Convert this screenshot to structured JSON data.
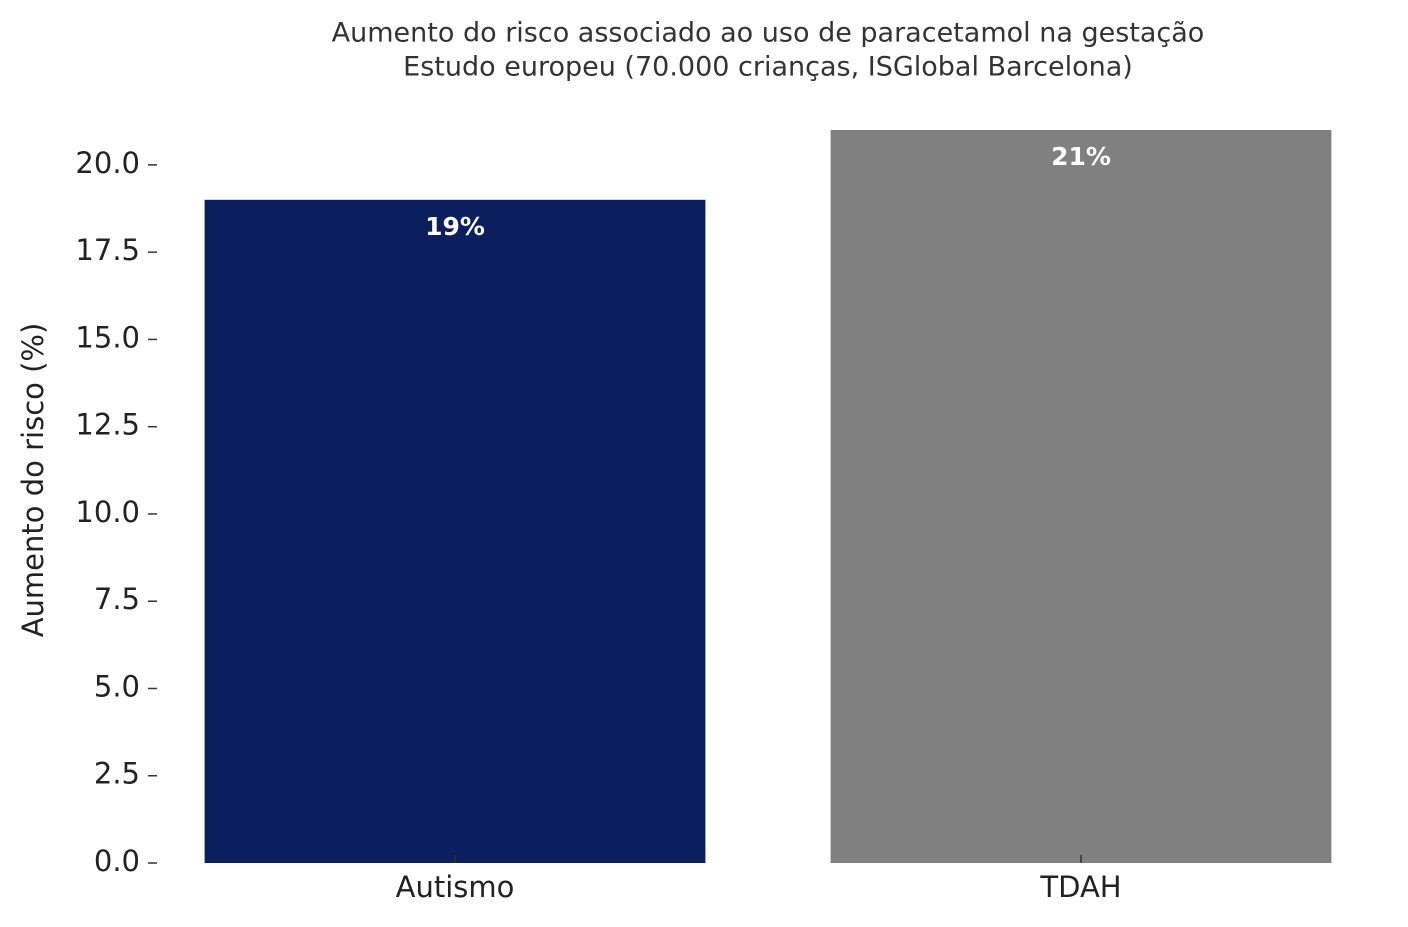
{
  "chart_data": {
    "type": "bar",
    "title": "Aumento do risco associado ao uso de paracetamol na gestação",
    "subtitle": "Estudo europeu (70.000 crianças, ISGlobal Barcelona)",
    "y_label": "Aumento do risco (%)",
    "categories": [
      "Autismo",
      "TDAH"
    ],
    "values": [
      19,
      21
    ],
    "value_labels": [
      "19%",
      "21%"
    ],
    "colors": [
      "#0b1f5f",
      "#808080"
    ],
    "ylim": [
      0,
      21
    ],
    "yticks": [
      {
        "value": 0,
        "label": "0.0"
      },
      2.5,
      {
        "value": 5,
        "label": "5.0"
      },
      7.5,
      {
        "value": 10,
        "label": "10.0"
      },
      12.5,
      {
        "value": 15,
        "label": "15.0"
      },
      17.5,
      {
        "value": 20,
        "label": "20.0"
      }
    ],
    "grid": false
  }
}
